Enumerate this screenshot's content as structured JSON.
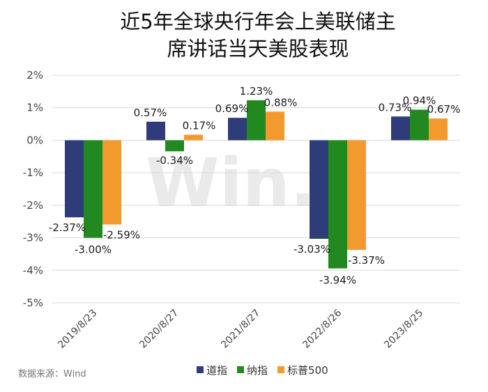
{
  "title_lines": [
    "近5年全球央行年会上美联储主",
    "席讲话当天美股表现"
  ],
  "source": "数据来源：Wind",
  "watermark": "Win.d",
  "chart_data": {
    "type": "bar",
    "categories": [
      "2019/8/23",
      "2020/8/27",
      "2021/8/27",
      "2022/8/26",
      "2023/8/25"
    ],
    "series": [
      {
        "name": "道指",
        "color": "#2e3d7a",
        "values": [
          -2.37,
          0.57,
          0.69,
          -3.03,
          0.73
        ],
        "labels": [
          "-2.37%",
          "0.57%",
          "0.69%",
          "-3.03%",
          "0.73%"
        ]
      },
      {
        "name": "纳指",
        "color": "#21891f",
        "values": [
          -3.0,
          -0.34,
          1.23,
          -3.94,
          0.94
        ],
        "labels": [
          "-3.00%",
          "-0.34%",
          "1.23%",
          "-3.94%",
          "0.94%"
        ]
      },
      {
        "name": "标普500",
        "color": "#f39a2e",
        "values": [
          -2.59,
          0.17,
          0.88,
          -3.37,
          0.67
        ],
        "labels": [
          "-2.59%",
          "0.17%",
          "0.88%",
          "-3.37%",
          "0.67%"
        ]
      }
    ],
    "ylim": [
      -5,
      2
    ],
    "yticks": [
      2,
      1,
      0,
      -1,
      -2,
      -3,
      -4,
      -5
    ],
    "ytick_labels": [
      "2%",
      "1%",
      "0%",
      "-1%",
      "-2%",
      "-3%",
      "-4%",
      "-5%"
    ],
    "grid": true,
    "legend": "bottom"
  }
}
